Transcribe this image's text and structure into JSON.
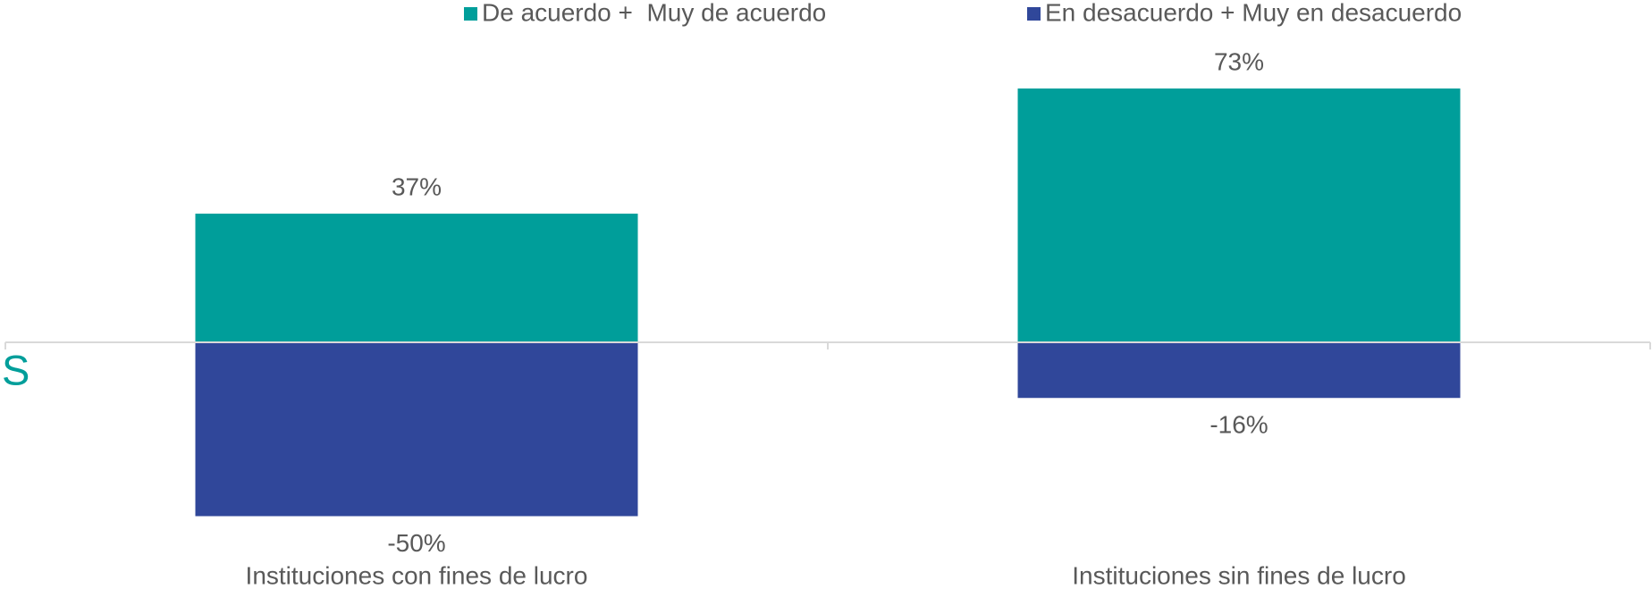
{
  "chart_data": {
    "type": "bar",
    "categories": [
      "Instituciones con fines de lucro",
      "Instituciones sin fines de lucro"
    ],
    "series": [
      {
        "name": "De acuerdo +  Muy de acuerdo",
        "color": "#009e9a",
        "values": [
          37,
          73
        ],
        "value_labels": [
          "37%",
          "73%"
        ]
      },
      {
        "name": "En desacuerdo + Muy en desacuerdo",
        "color": "#30479a",
        "values": [
          -50,
          -16
        ],
        "value_labels": [
          "-50%",
          "-16%"
        ]
      }
    ],
    "annotation": "S",
    "legend": "top"
  }
}
